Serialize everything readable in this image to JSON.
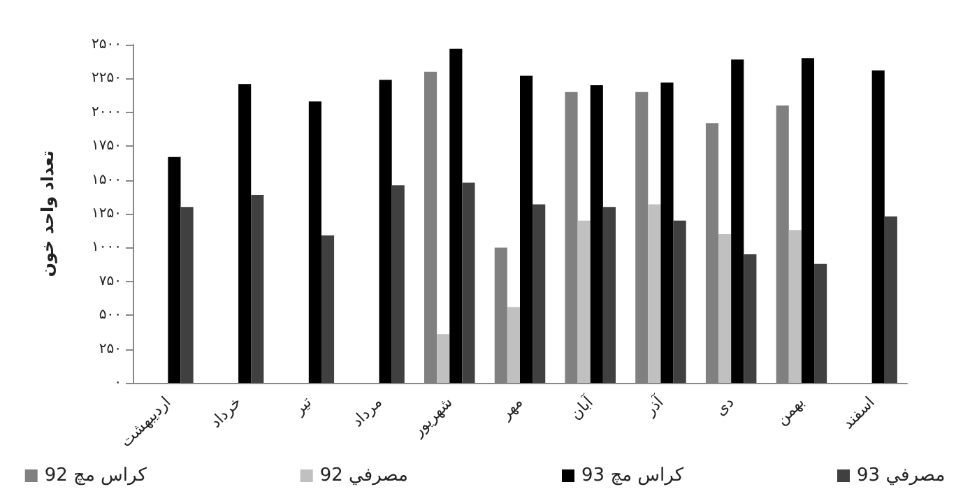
{
  "chart_data": {
    "type": "bar",
    "ylabel": "تعداد واحد خون",
    "categories": [
      "اردیبهشت",
      "خرداد",
      "تیر",
      "مرداد",
      "شهریور",
      "مهر",
      "آبان",
      "آذر",
      "دی",
      "بهمن",
      "اسفند"
    ],
    "series": [
      {
        "name": "92 کراس مچ",
        "color": "#808080",
        "values": [
          null,
          null,
          null,
          null,
          2300,
          1000,
          2150,
          2150,
          1920,
          2050,
          null
        ]
      },
      {
        "name": "92 مصرفي",
        "color": "#c0c0c0",
        "values": [
          null,
          null,
          null,
          null,
          360,
          560,
          1200,
          1320,
          1100,
          1130,
          null
        ]
      },
      {
        "name": "93 کراس مچ",
        "color": "#000000",
        "values": [
          1670,
          2210,
          2080,
          2240,
          2470,
          2270,
          2200,
          2220,
          2390,
          2400,
          2310
        ]
      },
      {
        "name": "93 مصرفي",
        "color": "#404040",
        "values": [
          1300,
          1390,
          1090,
          1460,
          1480,
          1320,
          1300,
          1200,
          950,
          880,
          1230
        ]
      }
    ],
    "ylim": [
      0,
      2500
    ],
    "yticks": [
      {
        "value": 0,
        "label": "۰"
      },
      {
        "value": 250,
        "label": "۲۵۰"
      },
      {
        "value": 500,
        "label": "۵۰۰"
      },
      {
        "value": 750,
        "label": "۷۵۰"
      },
      {
        "value": 1000,
        "label": "۱۰۰۰"
      },
      {
        "value": 1250,
        "label": "۱۲۵۰"
      },
      {
        "value": 1500,
        "label": "۱۵۰۰"
      },
      {
        "value": 1750,
        "label": "۱۷۵۰"
      },
      {
        "value": 2000,
        "label": "۲۰۰۰"
      },
      {
        "value": 2250,
        "label": "۲۲۵۰"
      },
      {
        "value": 2500,
        "label": "۲۵۰۰"
      }
    ],
    "grid": false,
    "legend": "bottom"
  }
}
